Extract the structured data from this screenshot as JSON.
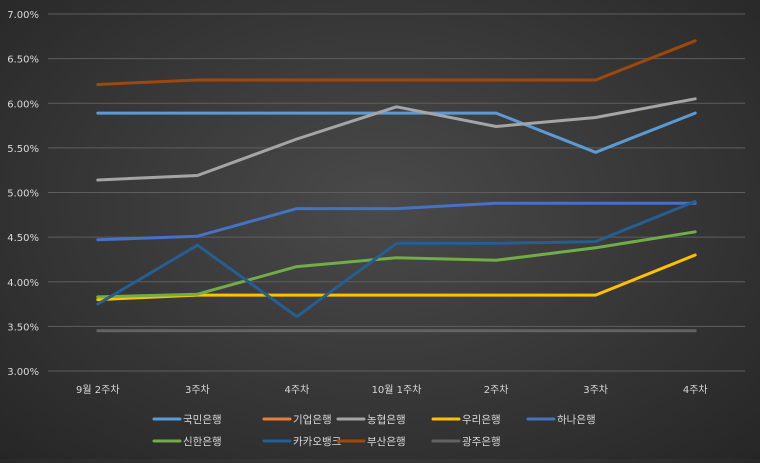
{
  "chart_data": {
    "type": "line",
    "title": "",
    "xlabel": "",
    "ylabel": "",
    "categories": [
      "9월 2주차",
      "3주차",
      "4주차",
      "10월 1주차",
      "2주차",
      "3주차",
      "4주차"
    ],
    "ylim": [
      3.0,
      7.0
    ],
    "yticks": [
      "3.00%",
      "3.50%",
      "4.00%",
      "4.50%",
      "5.00%",
      "5.50%",
      "6.00%",
      "6.50%",
      "7.00%"
    ],
    "grid": true,
    "legend_position": "bottom",
    "series": [
      {
        "name": "국민은행",
        "color": "#5b9bd5",
        "values": [
          5.89,
          5.89,
          5.89,
          5.89,
          5.89,
          5.45,
          5.89
        ]
      },
      {
        "name": "기업은행",
        "color": "#ed7d31",
        "values": [
          null,
          null,
          null,
          null,
          null,
          null,
          null
        ]
      },
      {
        "name": "농협은행",
        "color": "#a5a5a5",
        "values": [
          5.14,
          5.19,
          5.6,
          5.96,
          5.74,
          5.84,
          6.05
        ]
      },
      {
        "name": "우리은행",
        "color": "#ffc000",
        "values": [
          3.8,
          3.85,
          3.85,
          3.85,
          3.85,
          3.85,
          4.3
        ]
      },
      {
        "name": "하나은행",
        "color": "#4472c4",
        "values": [
          4.47,
          4.51,
          4.82,
          4.82,
          4.88,
          4.88,
          4.88
        ]
      },
      {
        "name": "신한은행",
        "color": "#70ad47",
        "values": [
          3.83,
          3.86,
          4.17,
          4.27,
          4.24,
          4.38,
          4.56
        ]
      },
      {
        "name": "카카오뱅크",
        "color": "#255e91",
        "values": [
          3.75,
          4.41,
          3.61,
          4.43,
          4.43,
          4.45,
          4.9
        ]
      },
      {
        "name": "부산은행",
        "color": "#9e480e",
        "values": [
          6.21,
          6.26,
          6.26,
          6.26,
          6.26,
          6.26,
          6.7
        ]
      },
      {
        "name": "광주은행",
        "color": "#636363",
        "values": [
          3.45,
          3.45,
          3.45,
          3.45,
          3.45,
          3.45,
          3.45
        ]
      }
    ]
  }
}
